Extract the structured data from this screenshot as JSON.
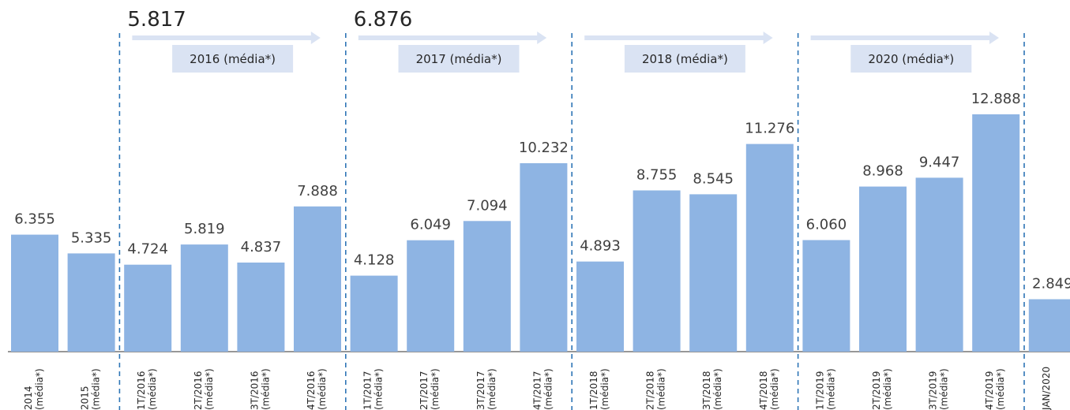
{
  "chart_data": {
    "type": "bar",
    "categories": [
      [
        "2014",
        "(média*)"
      ],
      [
        "2015",
        "(média*)"
      ],
      [
        "1T/2016",
        "(média*)"
      ],
      [
        "2T/2016",
        "(média*)"
      ],
      [
        "3T/2016",
        "(média*)"
      ],
      [
        "4T/2016",
        "(média*)"
      ],
      [
        "1T/2017",
        "(média*)"
      ],
      [
        "2T/2017",
        "(média*)"
      ],
      [
        "3T/2017",
        "(média*)"
      ],
      [
        "4T/2017",
        "(média*)"
      ],
      [
        "1T/2018",
        "(média*)"
      ],
      [
        "2T/2018",
        "(média*)"
      ],
      [
        "3T/2018",
        "(média*)"
      ],
      [
        "4T/2018",
        "(média*)"
      ],
      [
        "1T/2019",
        "(média*)"
      ],
      [
        "2T/2019",
        "(média*)"
      ],
      [
        "3T/2019",
        "(média*)"
      ],
      [
        "4T/2019",
        "(média*)"
      ],
      [
        "JAN/2020",
        ""
      ]
    ],
    "values": [
      6355,
      5335,
      4724,
      5819,
      4837,
      7888,
      4128,
      6049,
      7094,
      10232,
      4893,
      8755,
      8545,
      11276,
      6060,
      8968,
      9447,
      12888,
      2849
    ],
    "value_labels": [
      "6.355",
      "5.335",
      "4.724",
      "5.819",
      "4.837",
      "7.888",
      "4.128",
      "6.049",
      "7.094",
      "10.232",
      "4.893",
      "8.755",
      "8.545",
      "11.276",
      "6.060",
      "8.968",
      "9.447",
      "12.888",
      "2.849"
    ],
    "ylim": [
      0,
      14000
    ],
    "grid": false,
    "bar_color": "#8eb4e3",
    "divider_color": "#2e75b6",
    "groups": [
      {
        "label": "2016 (média*)",
        "average": "5.817"
      },
      {
        "label": "2017 (média*)",
        "average": "6.876"
      },
      {
        "label": "2018 (média*)",
        "average": ""
      },
      {
        "label": "2020 (média*)",
        "average": ""
      }
    ]
  }
}
